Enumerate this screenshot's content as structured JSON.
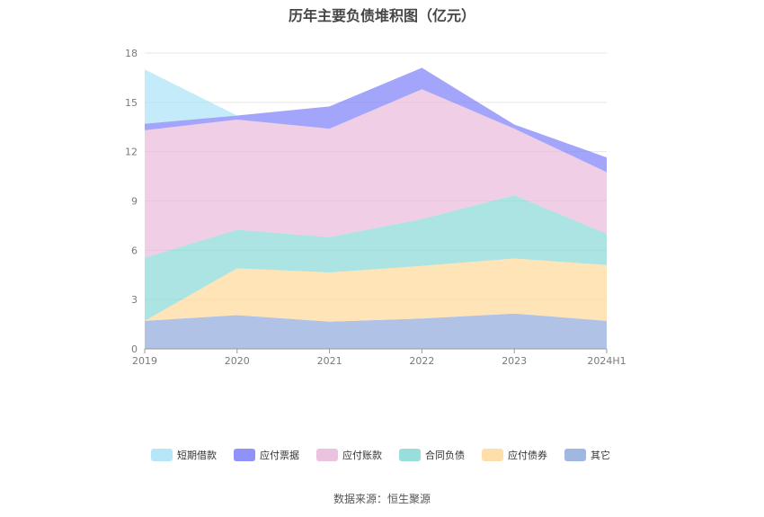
{
  "chart_data": {
    "type": "area",
    "stacked": true,
    "title": "历年主要负债堆积图（亿元）",
    "categories": [
      "2019",
      "2020",
      "2021",
      "2022",
      "2023",
      "2024H1"
    ],
    "ylim": [
      0,
      18
    ],
    "yticks": [
      0,
      3,
      6,
      9,
      12,
      15,
      18
    ],
    "grid": true,
    "legend_position": "bottom",
    "series": [
      {
        "name": "其它",
        "color": "#8faadc",
        "values": [
          1.7,
          2.05,
          1.65,
          1.85,
          2.15,
          1.7
        ]
      },
      {
        "name": "应付债券",
        "color": "#ffd99a",
        "values": [
          0.0,
          2.85,
          3.0,
          3.2,
          3.35,
          3.4
        ]
      },
      {
        "name": "合同负债",
        "color": "#88d8d5",
        "values": [
          3.85,
          2.35,
          2.15,
          2.85,
          3.85,
          1.9
        ]
      },
      {
        "name": "应付账款",
        "color": "#e8b9dc",
        "values": [
          7.75,
          6.7,
          6.6,
          7.9,
          4.05,
          3.75
        ]
      },
      {
        "name": "应付票据",
        "color": "#7b7ff7",
        "values": [
          0.4,
          0.25,
          1.35,
          1.3,
          0.25,
          0.9
        ]
      },
      {
        "name": "短期借款",
        "color": "#a9e3f7",
        "values": [
          3.3,
          0.0,
          0.0,
          0.0,
          0.0,
          0.0
        ]
      }
    ]
  },
  "source_text": "数据来源：恒生聚源"
}
